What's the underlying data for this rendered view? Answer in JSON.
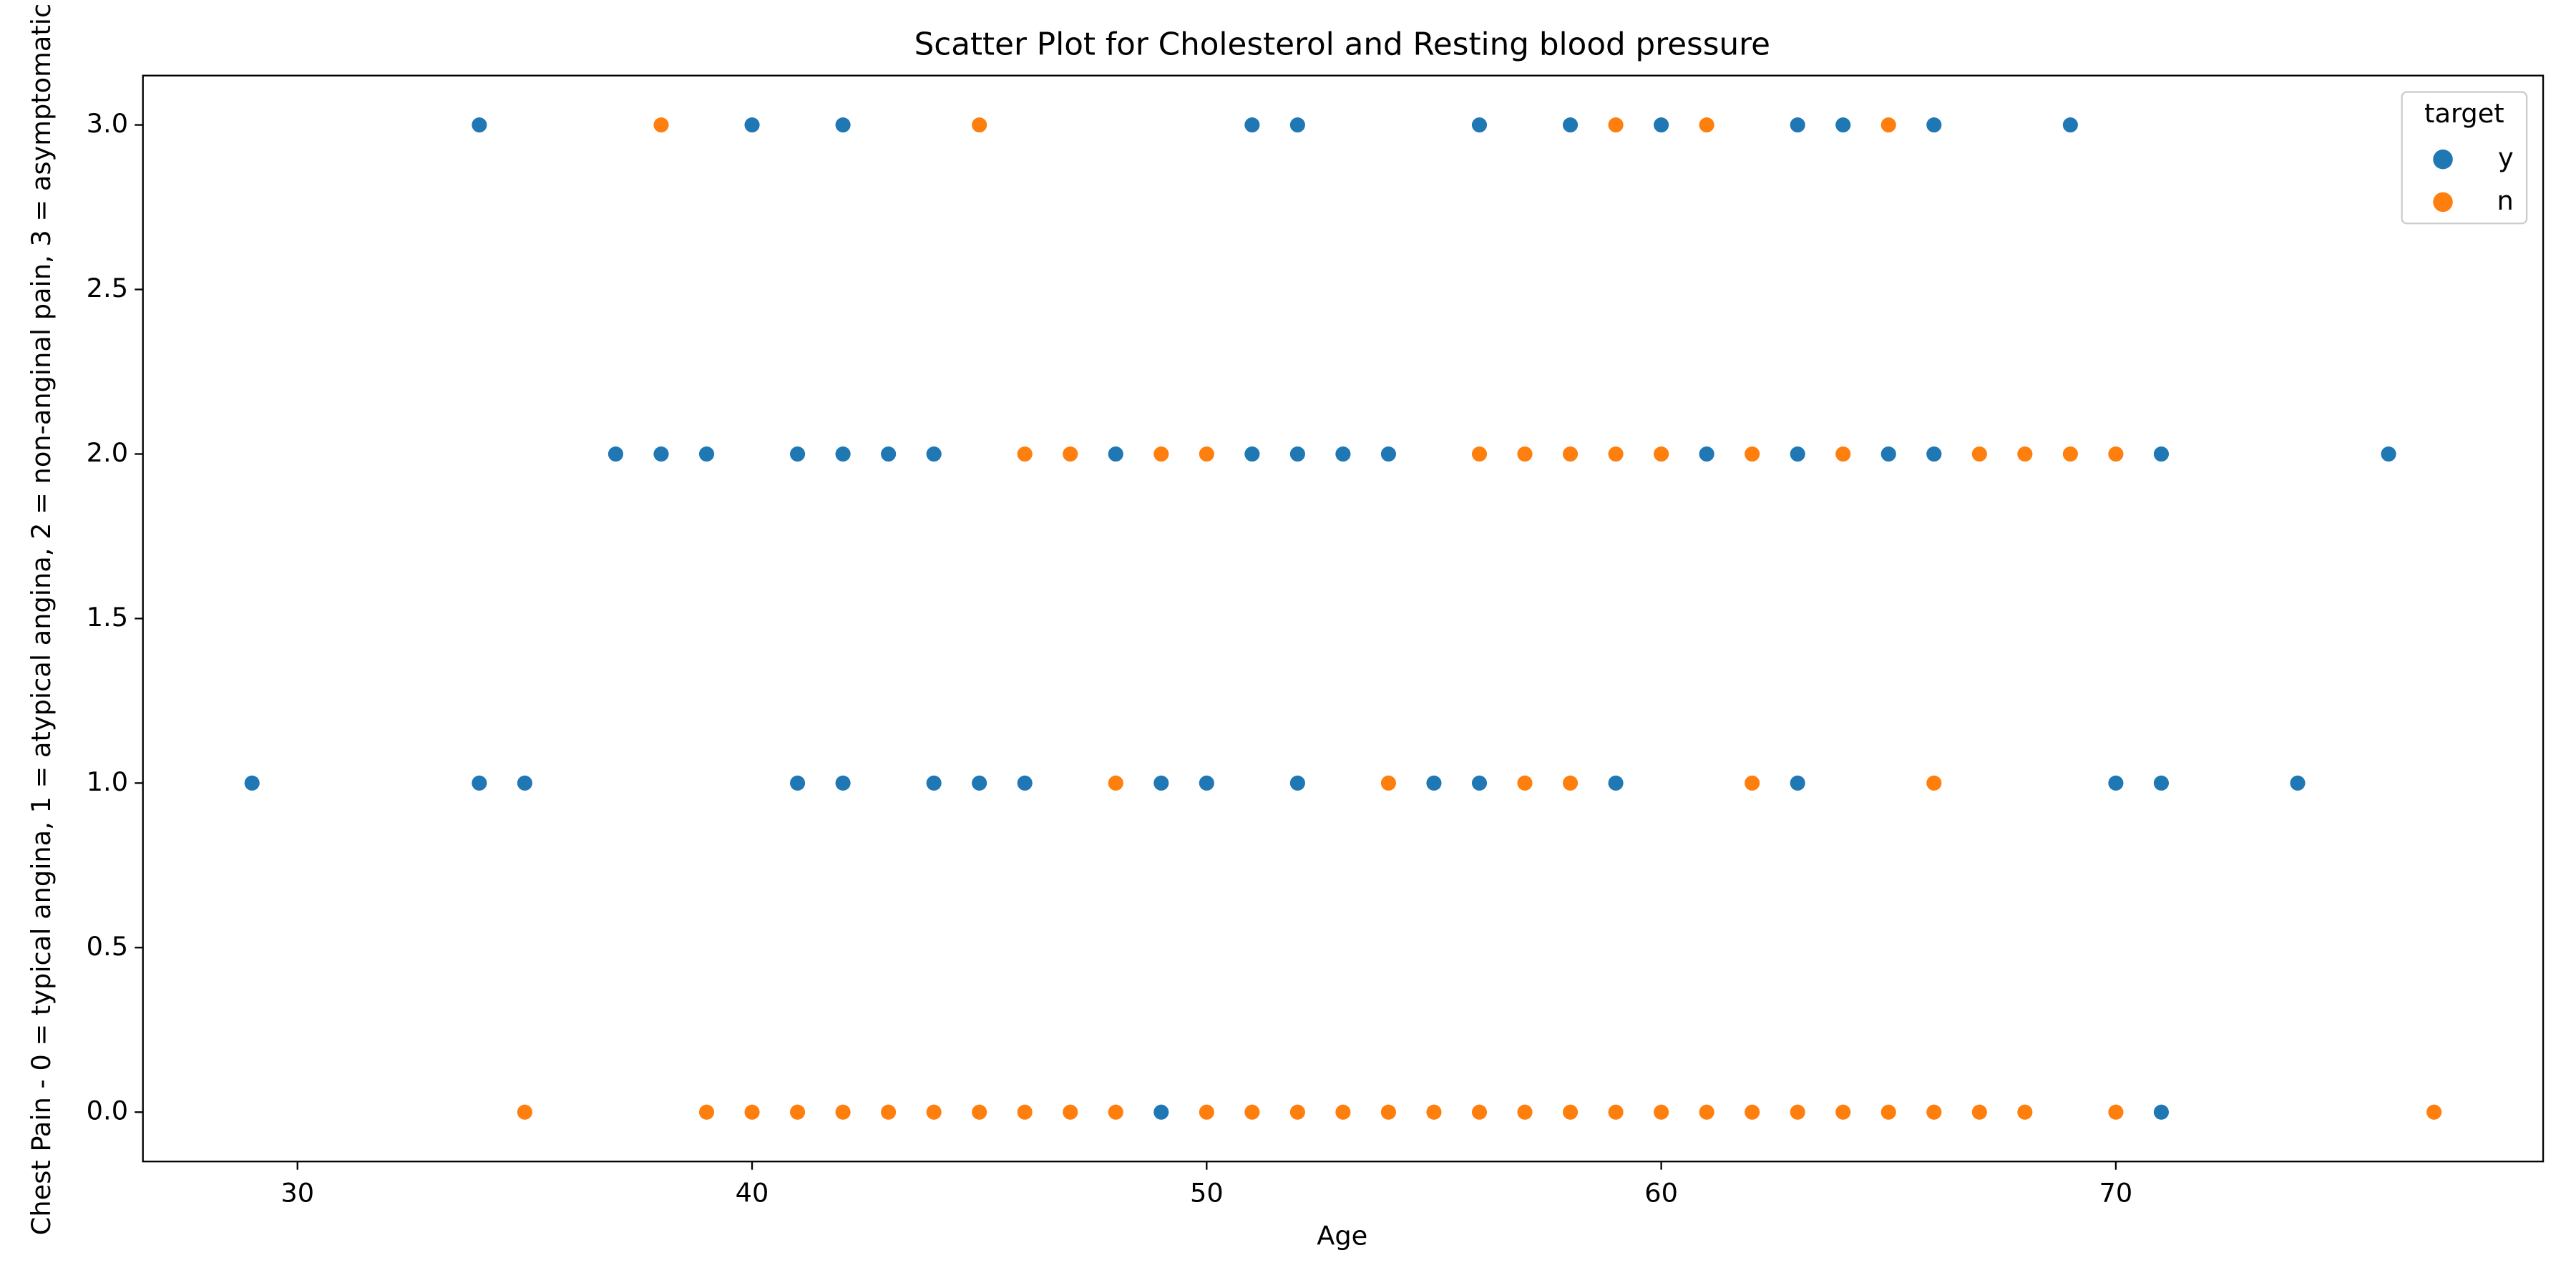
{
  "chart_data": {
    "type": "scatter",
    "title": "Scatter Plot for Cholesterol and Resting blood pressure",
    "x_label": "Age",
    "y_label": "Chest Pain - 0 = typical angina, 1 = atypical angina, 2 = non-anginal pain, 3 = asymptomatic",
    "legend_title": "target",
    "legend_position": "upper-right",
    "xlim": [
      26.6,
      79.4
    ],
    "ylim": [
      -0.15,
      3.15
    ],
    "xticks": [
      30,
      40,
      50,
      60,
      70
    ],
    "yticks": [
      {
        "value": 0,
        "label": "0.0"
      },
      {
        "value": 0.5,
        "label": "0.5"
      },
      {
        "value": 1,
        "label": "1.0"
      },
      {
        "value": 1.5,
        "label": "1.5"
      },
      {
        "value": 2,
        "label": "2.0"
      },
      {
        "value": 2.5,
        "label": "2.5"
      },
      {
        "value": 3,
        "label": "3.0"
      }
    ],
    "grid": false,
    "series": [
      {
        "name": "y",
        "color": "#1f77b4",
        "x": [
          34,
          40,
          42,
          51,
          52,
          56,
          58,
          60,
          63,
          64,
          66,
          69,
          37,
          38,
          39,
          41,
          42,
          43,
          44,
          48,
          51,
          52,
          53,
          54,
          61,
          63,
          65,
          66,
          71,
          76,
          29,
          34,
          35,
          41,
          42,
          44,
          45,
          46,
          49,
          50,
          52,
          55,
          56,
          59,
          63,
          70,
          71,
          74,
          49,
          71
        ],
        "values": [
          3,
          3,
          3,
          3,
          3,
          3,
          3,
          3,
          3,
          3,
          3,
          3,
          2,
          2,
          2,
          2,
          2,
          2,
          2,
          2,
          2,
          2,
          2,
          2,
          2,
          2,
          2,
          2,
          2,
          2,
          1,
          1,
          1,
          1,
          1,
          1,
          1,
          1,
          1,
          1,
          1,
          1,
          1,
          1,
          1,
          1,
          1,
          1,
          0,
          0
        ]
      },
      {
        "name": "n",
        "color": "#ff7f0e",
        "x": [
          38,
          45,
          59,
          61,
          65,
          46,
          47,
          49,
          50,
          56,
          57,
          58,
          59,
          60,
          62,
          64,
          67,
          68,
          69,
          70,
          48,
          54,
          57,
          58,
          62,
          66,
          35,
          39,
          40,
          41,
          42,
          43,
          44,
          45,
          46,
          47,
          48,
          50,
          51,
          52,
          53,
          54,
          55,
          56,
          57,
          58,
          59,
          60,
          61,
          62,
          63,
          64,
          65,
          66,
          67,
          68,
          70,
          77
        ],
        "values": [
          3,
          3,
          3,
          3,
          3,
          2,
          2,
          2,
          2,
          2,
          2,
          2,
          2,
          2,
          2,
          2,
          2,
          2,
          2,
          2,
          1,
          1,
          1,
          1,
          1,
          1,
          0,
          0,
          0,
          0,
          0,
          0,
          0,
          0,
          0,
          0,
          0,
          0,
          0,
          0,
          0,
          0,
          0,
          0,
          0,
          0,
          0,
          0,
          0,
          0,
          0,
          0,
          0,
          0,
          0,
          0,
          0,
          0
        ]
      }
    ]
  }
}
